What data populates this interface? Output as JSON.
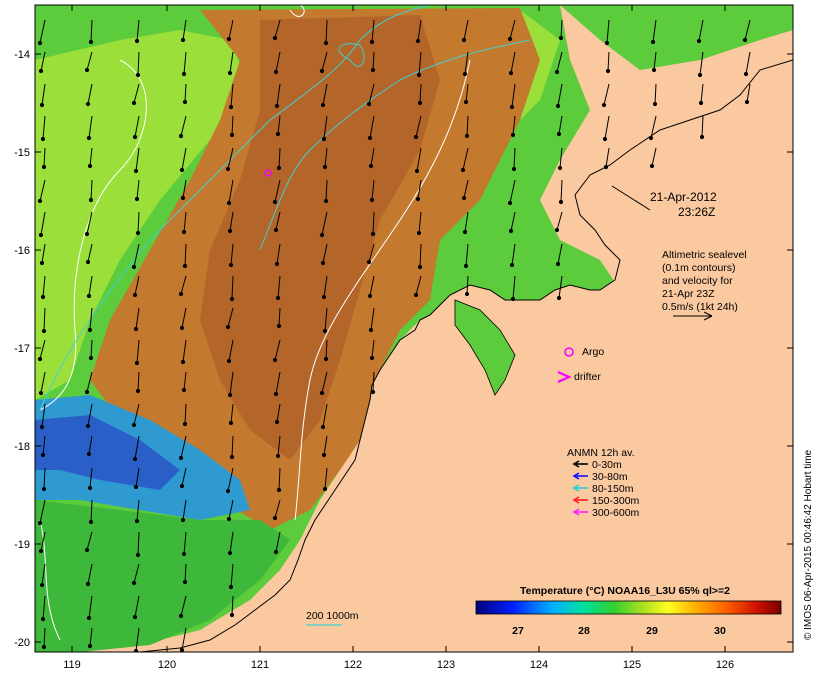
{
  "map": {
    "lon_ticks": [
      "119",
      "120",
      "121",
      "122",
      "123",
      "124",
      "125",
      "126"
    ],
    "lat_ticks": [
      "-14",
      "-15",
      "-16",
      "-17",
      "-18",
      "-19",
      "-20"
    ],
    "lon_range": [
      118.6,
      126.7
    ],
    "lat_range": [
      -20.1,
      -13.6
    ]
  },
  "annotations": {
    "date_line1": "21-Apr-2012",
    "date_line2": "23:26Z",
    "altimetry": [
      "Altimetric sealevel",
      "(0.1m contours)",
      "and velocity for",
      "21-Apr 23Z",
      "0.5m/s (1kt 24h)"
    ],
    "argo_label": "Argo",
    "drifter_label": "drifter",
    "depth_label": "200  1000m"
  },
  "legend": {
    "title": "ANMN 12h av.",
    "items": [
      {
        "label": "0-30m",
        "color": "#000000"
      },
      {
        "label": "30-80m",
        "color": "#1010ff"
      },
      {
        "label": "80-150m",
        "color": "#20d0d0"
      },
      {
        "label": "150-300m",
        "color": "#ff2020"
      },
      {
        "label": "300-600m",
        "color": "#ff20ff"
      }
    ]
  },
  "colorbar": {
    "title": "Temperature (°C) NOAA16_L3U 65% ql>=2",
    "ticks": [
      "27",
      "28",
      "29",
      "30"
    ]
  },
  "credit": "© IMOS 06-Apr-2015 00:46:42 Hobart time",
  "colors": {
    "land": "#fac9a0",
    "warm": "#c87a2a",
    "green": "#4fc83a",
    "cold": "#2a6fd0"
  }
}
